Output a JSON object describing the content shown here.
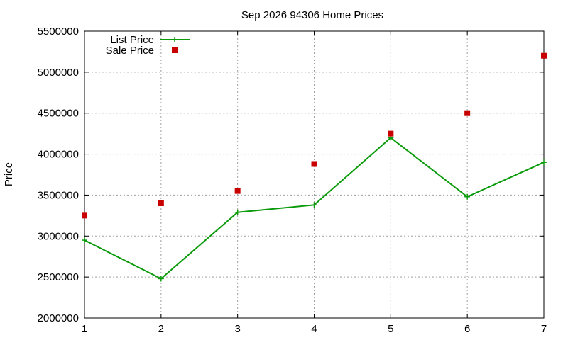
{
  "chart_data": {
    "type": "line",
    "title": "Sep 2026 94306 Home Prices",
    "xlabel": "",
    "ylabel": "Price",
    "x": [
      1,
      2,
      3,
      4,
      5,
      6,
      7
    ],
    "xlim": [
      1,
      7
    ],
    "ylim": [
      2000000,
      5500000
    ],
    "xticks": [
      "1",
      "2",
      "3",
      "4",
      "5",
      "6",
      "7"
    ],
    "yticks": [
      "2000000",
      "2500000",
      "3000000",
      "3500000",
      "4000000",
      "4500000",
      "5000000",
      "5500000"
    ],
    "grid": true,
    "legend_position": "top-left",
    "series": [
      {
        "name": "List Price",
        "style": "line-with-plus-markers",
        "color": "#0a9a0a",
        "values": [
          2950000,
          2480000,
          3290000,
          3380000,
          4200000,
          3480000,
          3900000
        ]
      },
      {
        "name": "Sale Price",
        "style": "square-points",
        "color": "#c80000",
        "values": [
          3250000,
          3400000,
          3550000,
          3880000,
          4250000,
          4500000,
          5200000
        ]
      }
    ]
  }
}
